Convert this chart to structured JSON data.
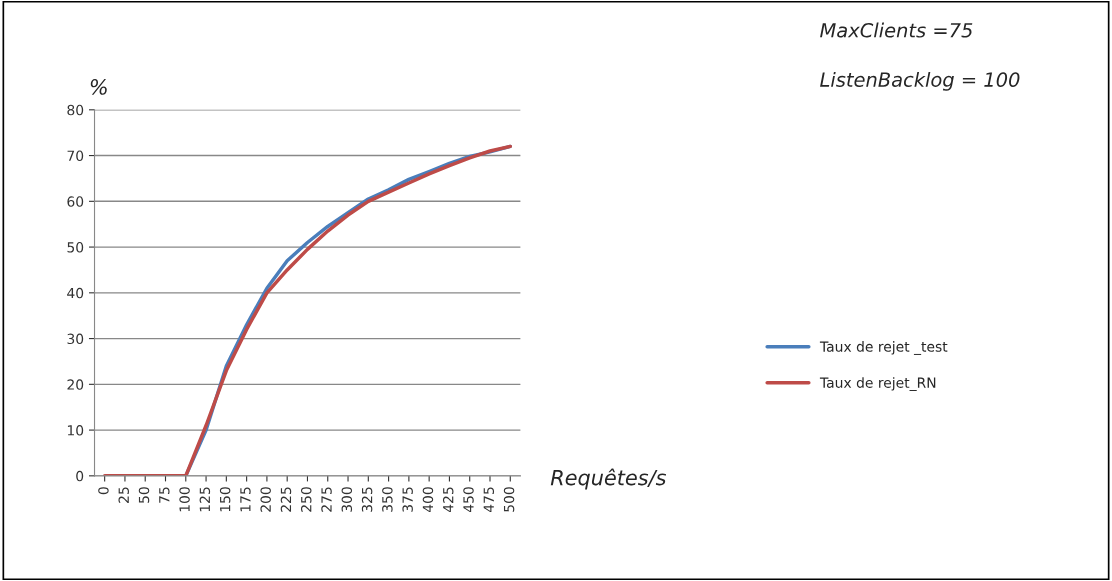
{
  "chart_data": {
    "type": "line",
    "xlabel": "Requêtes/s",
    "ylabel": "%",
    "categories": [
      "0",
      "25",
      "50",
      "75",
      "100",
      "125",
      "150",
      "175",
      "200",
      "225",
      "250",
      "275",
      "300",
      "325",
      "350",
      "375",
      "400",
      "425",
      "450",
      "475",
      "500"
    ],
    "series": [
      {
        "name": "Taux de rejet _test",
        "color": "#4a7ebb",
        "values": [
          null,
          null,
          null,
          null,
          0,
          10,
          24,
          33,
          41,
          47,
          51,
          54.5,
          57.5,
          60.5,
          62.5,
          64.8,
          66.5,
          68.3,
          69.8,
          70.8,
          72
        ]
      },
      {
        "name": "Taux de rejet_RN",
        "color": "#be4b48",
        "values": [
          0,
          0,
          0,
          0,
          0,
          11,
          23,
          32,
          40,
          45,
          49.5,
          53.5,
          57,
          60,
          62,
          64,
          66,
          67.8,
          69.5,
          71,
          72
        ]
      }
    ],
    "ylim": [
      0,
      80
    ],
    "yticks": [
      0,
      10,
      20,
      30,
      40,
      50,
      60,
      70,
      80
    ],
    "grid": "y",
    "legend": "right",
    "marker": "none",
    "line_style": "solid",
    "annotations": [
      "MaxClients =75",
      "ListenBacklog = 100"
    ]
  }
}
